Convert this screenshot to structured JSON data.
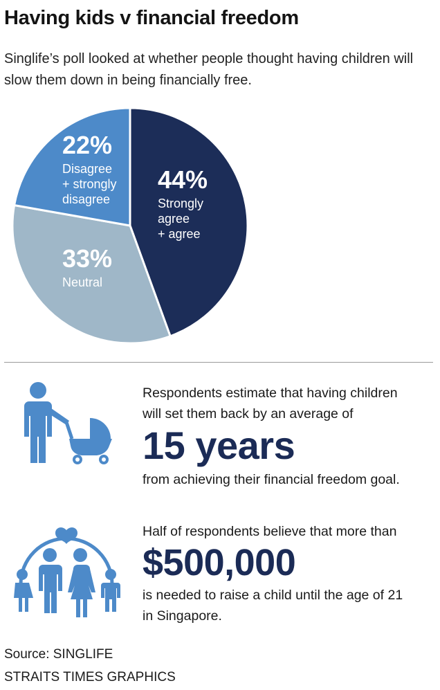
{
  "title": "Having kids v financial freedom",
  "subtitle": "Singlife’s poll looked at whether people thought having children will slow them down in being financially free.",
  "chart_data": {
    "type": "pie",
    "slices": [
      {
        "value": 44,
        "label_pct": "44%",
        "label_lines": [
          "Strongly",
          "agree",
          "+ agree"
        ],
        "color": "#1c2d58"
      },
      {
        "value": 33,
        "label_pct": "33%",
        "label_lines": [
          "Neutral"
        ],
        "color": "#9fb7c8"
      },
      {
        "value": 22,
        "label_pct": "22%",
        "label_lines": [
          "Disagree",
          "+ strongly",
          "disagree"
        ],
        "color": "#4d8ac9"
      }
    ]
  },
  "stat1": {
    "line1": "Respondents estimate that having children",
    "line2": "will set them back by an average of",
    "big": "15 years",
    "line3": "from achieving their financial freedom goal.",
    "icon": "parent-with-stroller-icon"
  },
  "stat2": {
    "line1": "Half of respondents believe that more than",
    "big": "$500,000",
    "line2": "is needed to raise a child until the age of 21",
    "line3": "in Singapore.",
    "icon": "family-with-heart-icon"
  },
  "source": "Source: SINGLIFE",
  "credit": "STRAITS TIMES GRAPHICS",
  "colors": {
    "icon": "#4d8ac9",
    "navy": "#1b2b56"
  }
}
